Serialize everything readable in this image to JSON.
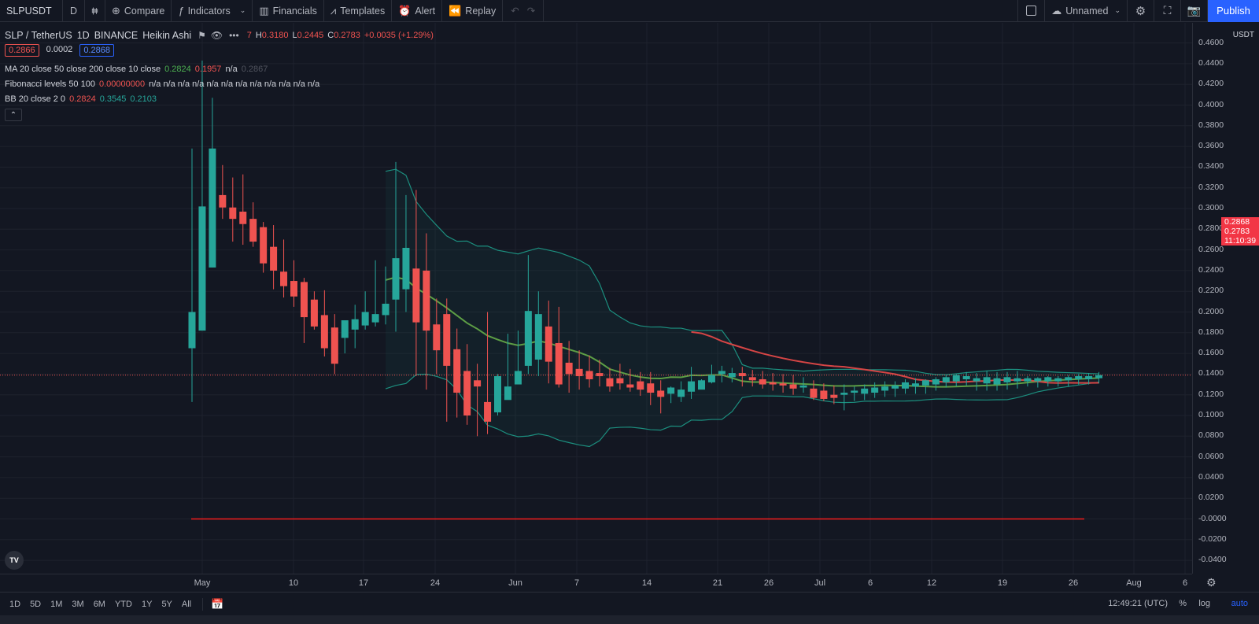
{
  "toolbar": {
    "symbol": "SLPUSDT",
    "interval": "D",
    "bar_icon": "candles-icon",
    "compare": "Compare",
    "indicators": "Indicators",
    "financials": "Financials",
    "templates": "Templates",
    "alert": "Alert",
    "replay": "Replay",
    "layout_name": "Unnamed",
    "publish": "Publish"
  },
  "legend": {
    "title_parts": [
      "SLP / TetherUS",
      "1D",
      "BINANCE",
      "Heikin Ashi"
    ],
    "ohlc_prefix": "7",
    "high_label": "H",
    "high": "0.3180",
    "low_label": "L",
    "low": "0.2445",
    "close_label": "C",
    "close": "0.2783",
    "change": "+0.0035 (+1.29%)",
    "bid": "0.2866",
    "spread": "0.0002",
    "ask": "0.2868"
  },
  "indicators": {
    "ma": {
      "name": "MA 20 close 50 close 200 close 10 close",
      "v1": "0.2824",
      "v2": "0.1957",
      "v3": "n/a",
      "v4": "0.2867"
    },
    "fib": {
      "name": "Fibonacci levels 50 100",
      "v1": "0.00000000",
      "rest": "n/a n/a n/a n/a n/a n/a n/a n/a n/a n/a n/a n/a"
    },
    "bb": {
      "name": "BB 20 close 2 0",
      "v1": "0.2824",
      "v2": "0.3545",
      "v3": "0.2103"
    }
  },
  "price_axis": {
    "currency": "USDT",
    "ticks": [
      "0.4600",
      "0.4400",
      "0.4200",
      "0.4000",
      "0.3800",
      "0.3600",
      "0.3400",
      "0.3200",
      "0.3000",
      "0.2800",
      "0.2600",
      "0.2400",
      "0.2200",
      "0.2000",
      "0.1800",
      "0.1600",
      "0.1400",
      "0.1200",
      "0.1000",
      "0.0800",
      "0.0600",
      "0.0400",
      "0.0200",
      "-0.0000",
      "-0.0200",
      "-0.0400"
    ],
    "ask_label": "0.2868",
    "last_label": "0.2783",
    "countdown": "11:10:39"
  },
  "time_axis": {
    "labels": [
      "May",
      "10",
      "17",
      "24",
      "Jun",
      "7",
      "14",
      "21",
      "26",
      "Jul",
      "6",
      "12",
      "19",
      "26",
      "Aug",
      "6"
    ]
  },
  "bottom": {
    "ranges": [
      "1D",
      "5D",
      "1M",
      "3M",
      "6M",
      "YTD",
      "1Y",
      "5Y",
      "All"
    ],
    "clock": "12:49:21 (UTC)",
    "percent": "%",
    "log": "log",
    "auto": "auto"
  },
  "colors": {
    "up": "#26a69a",
    "down": "#ef5350",
    "ma20": "#5d9e45",
    "ma50": "#d64545",
    "bb_band": "#1c8f7f",
    "hline": "#f21d1d"
  },
  "chart_data": {
    "type": "candlestick",
    "style": "Heikin Ashi",
    "dates": [
      "Apr 29",
      "Apr 30",
      "May 1",
      "May 2",
      "May 3",
      "May 4",
      "May 5",
      "May 6",
      "May 7",
      "May 8",
      "May 9",
      "May 10",
      "May 11",
      "May 12",
      "May 13",
      "May 14",
      "May 15",
      "May 16",
      "May 17",
      "May 18",
      "May 19",
      "May 20",
      "May 21",
      "May 22",
      "May 23",
      "May 24",
      "May 25",
      "May 26",
      "May 27",
      "May 28",
      "May 29",
      "May 30",
      "May 31",
      "Jun 1",
      "Jun 2",
      "Jun 3",
      "Jun 4",
      "Jun 5",
      "Jun 6",
      "Jun 7",
      "Jun 8",
      "Jun 9",
      "Jun 10",
      "Jun 11",
      "Jun 12",
      "Jun 13",
      "Jun 14",
      "Jun 15",
      "Jun 16",
      "Jun 17",
      "Jun 18",
      "Jun 19",
      "Jun 20",
      "Jun 21",
      "Jun 22",
      "Jun 23",
      "Jun 24",
      "Jun 25",
      "Jun 26",
      "Jun 27",
      "Jun 28",
      "Jun 29",
      "Jun 30",
      "Jul 1",
      "Jul 2",
      "Jul 3",
      "Jul 4",
      "Jul 5",
      "Jul 6",
      "Jul 7",
      "Jul 8",
      "Jul 9",
      "Jul 10",
      "Jul 11",
      "Jul 12",
      "Jul 13",
      "Jul 14",
      "Jul 15",
      "Jul 16",
      "Jul 17",
      "Jul 18",
      "Jul 19",
      "Jul 20",
      "Jul 21",
      "Jul 22",
      "Jul 23",
      "Jul 24",
      "Jul 25",
      "Jul 26",
      "Jul 27"
    ],
    "ohlc": [
      [
        0.165,
        0.358,
        0.113,
        0.2
      ],
      [
        0.182,
        0.443,
        0.182,
        0.302
      ],
      [
        0.243,
        0.407,
        0.243,
        0.358
      ],
      [
        0.313,
        0.342,
        0.29,
        0.301
      ],
      [
        0.301,
        0.33,
        0.268,
        0.29
      ],
      [
        0.297,
        0.333,
        0.265,
        0.285
      ],
      [
        0.29,
        0.306,
        0.263,
        0.268
      ],
      [
        0.282,
        0.287,
        0.238,
        0.247
      ],
      [
        0.263,
        0.284,
        0.222,
        0.24
      ],
      [
        0.239,
        0.27,
        0.214,
        0.225
      ],
      [
        0.23,
        0.25,
        0.205,
        0.215
      ],
      [
        0.229,
        0.233,
        0.17,
        0.195
      ],
      [
        0.212,
        0.22,
        0.183,
        0.186
      ],
      [
        0.197,
        0.221,
        0.157,
        0.165
      ],
      [
        0.185,
        0.198,
        0.14,
        0.15
      ],
      [
        0.175,
        0.191,
        0.16,
        0.192
      ],
      [
        0.183,
        0.207,
        0.165,
        0.193
      ],
      [
        0.187,
        0.22,
        0.183,
        0.2
      ],
      [
        0.19,
        0.25,
        0.186,
        0.198
      ],
      [
        0.197,
        0.244,
        0.188,
        0.208
      ],
      [
        0.212,
        0.345,
        0.181,
        0.252
      ],
      [
        0.222,
        0.313,
        0.2,
        0.262
      ],
      [
        0.242,
        0.318,
        0.138,
        0.19
      ],
      [
        0.24,
        0.276,
        0.125,
        0.182
      ],
      [
        0.188,
        0.213,
        0.14,
        0.163
      ],
      [
        0.198,
        0.213,
        0.094,
        0.148
      ],
      [
        0.164,
        0.184,
        0.098,
        0.122
      ],
      [
        0.143,
        0.169,
        0.091,
        0.1
      ],
      [
        0.134,
        0.15,
        0.08,
        0.128
      ],
      [
        0.113,
        0.2,
        0.082,
        0.094
      ],
      [
        0.103,
        0.14,
        0.1,
        0.138
      ],
      [
        0.115,
        0.179,
        0.12,
        0.128
      ],
      [
        0.13,
        0.182,
        0.131,
        0.143
      ],
      [
        0.148,
        0.255,
        0.14,
        0.201
      ],
      [
        0.154,
        0.22,
        0.138,
        0.198
      ],
      [
        0.186,
        0.211,
        0.131,
        0.152
      ],
      [
        0.17,
        0.205,
        0.127,
        0.13
      ],
      [
        0.151,
        0.172,
        0.122,
        0.14
      ],
      [
        0.145,
        0.163,
        0.125,
        0.138
      ],
      [
        0.143,
        0.158,
        0.127,
        0.135
      ],
      [
        0.141,
        0.154,
        0.128,
        0.138
      ],
      [
        0.136,
        0.146,
        0.123,
        0.128
      ],
      [
        0.136,
        0.15,
        0.125,
        0.131
      ],
      [
        0.13,
        0.145,
        0.123,
        0.127
      ],
      [
        0.133,
        0.142,
        0.119,
        0.125
      ],
      [
        0.131,
        0.142,
        0.11,
        0.122
      ],
      [
        0.124,
        0.134,
        0.102,
        0.118
      ],
      [
        0.121,
        0.128,
        0.112,
        0.127
      ],
      [
        0.118,
        0.133,
        0.113,
        0.125
      ],
      [
        0.123,
        0.147,
        0.116,
        0.133
      ],
      [
        0.125,
        0.135,
        0.126,
        0.134
      ],
      [
        0.132,
        0.149,
        0.131,
        0.139
      ],
      [
        0.14,
        0.148,
        0.132,
        0.143
      ],
      [
        0.137,
        0.146,
        0.132,
        0.141
      ],
      [
        0.141,
        0.147,
        0.128,
        0.138
      ],
      [
        0.137,
        0.144,
        0.128,
        0.134
      ],
      [
        0.135,
        0.143,
        0.126,
        0.13
      ],
      [
        0.132,
        0.141,
        0.124,
        0.13
      ],
      [
        0.131,
        0.14,
        0.122,
        0.129
      ],
      [
        0.13,
        0.139,
        0.12,
        0.126
      ],
      [
        0.127,
        0.137,
        0.122,
        0.129
      ],
      [
        0.126,
        0.134,
        0.115,
        0.117
      ],
      [
        0.124,
        0.131,
        0.114,
        0.116
      ],
      [
        0.12,
        0.129,
        0.111,
        0.117
      ],
      [
        0.12,
        0.13,
        0.105,
        0.122
      ],
      [
        0.122,
        0.128,
        0.114,
        0.124
      ],
      [
        0.121,
        0.13,
        0.115,
        0.126
      ],
      [
        0.122,
        0.132,
        0.117,
        0.127
      ],
      [
        0.124,
        0.133,
        0.118,
        0.128
      ],
      [
        0.126,
        0.133,
        0.118,
        0.129
      ],
      [
        0.126,
        0.135,
        0.121,
        0.132
      ],
      [
        0.128,
        0.136,
        0.121,
        0.131
      ],
      [
        0.129,
        0.135,
        0.121,
        0.134
      ],
      [
        0.13,
        0.137,
        0.124,
        0.135
      ],
      [
        0.132,
        0.139,
        0.127,
        0.137
      ],
      [
        0.133,
        0.14,
        0.128,
        0.139
      ],
      [
        0.135,
        0.142,
        0.129,
        0.138
      ],
      [
        0.133,
        0.141,
        0.124,
        0.136
      ],
      [
        0.131,
        0.143,
        0.124,
        0.137
      ],
      [
        0.13,
        0.142,
        0.124,
        0.136
      ],
      [
        0.132,
        0.142,
        0.125,
        0.137
      ],
      [
        0.133,
        0.143,
        0.126,
        0.136
      ],
      [
        0.133,
        0.138,
        0.128,
        0.136
      ],
      [
        0.133,
        0.137,
        0.127,
        0.136
      ],
      [
        0.133,
        0.138,
        0.128,
        0.137
      ],
      [
        0.133,
        0.138,
        0.128,
        0.136
      ],
      [
        0.134,
        0.139,
        0.128,
        0.137
      ],
      [
        0.135,
        0.14,
        0.13,
        0.138
      ],
      [
        0.135,
        0.141,
        0.13,
        0.138
      ],
      [
        0.136,
        0.142,
        0.131,
        0.139
      ]
    ],
    "ma20": [
      [
        0.237,
        0.2
      ],
      [
        0.2267,
        0.184
      ],
      [
        0.2114,
        0.17
      ],
      [
        0.2003,
        0.161
      ],
      [
        0.1894,
        0.153
      ],
      [
        0.1795,
        0.146
      ],
      [
        0.1699,
        0.142
      ],
      [
        0.1567,
        0.137
      ],
      [
        0.1435,
        0.134
      ]
    ],
    "ma50_points": [
      [
        0.177,
        0.1818
      ],
      [
        0.166,
        0.1717
      ],
      [
        0.147,
        0.1542
      ],
      [
        0.139,
        0.1449
      ]
    ],
    "bb_upper": [],
    "bb_lower": [],
    "hline": 0.0,
    "ylim": [
      -0.04,
      0.46
    ],
    "ylabel": "USDT"
  }
}
